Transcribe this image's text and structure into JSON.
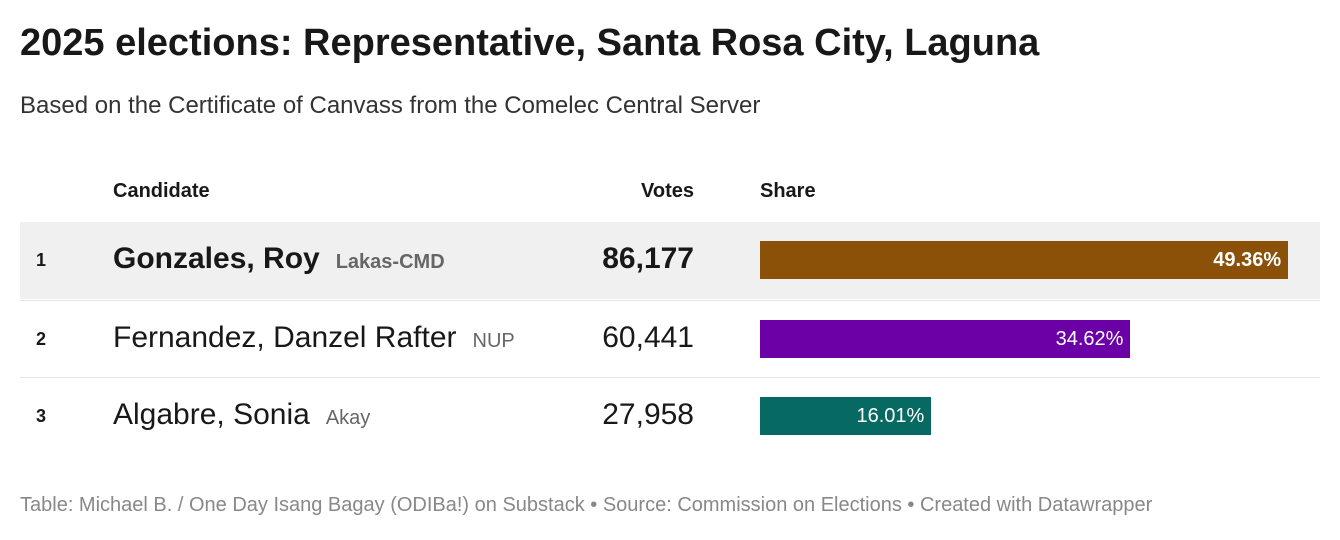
{
  "title": "2025 elections: Representative, Santa Rosa City, Laguna",
  "subtitle": "Based on the Certificate of Canvass from the Comelec Central Server",
  "table": {
    "columns": [
      "Candidate",
      "Votes",
      "Share"
    ],
    "rows": [
      {
        "rank": "1",
        "name": "Gonzales, Roy",
        "party": "Lakas-CMD",
        "votes": "86,177",
        "share": 49.36,
        "share_label": "49.36%",
        "color": "#8b5109"
      },
      {
        "rank": "2",
        "name": "Fernandez, Danzel Rafter",
        "party": "NUP",
        "votes": "60,441",
        "share": 34.62,
        "share_label": "34.62%",
        "color": "#6a00a6"
      },
      {
        "rank": "3",
        "name": "Algabre, Sonia",
        "party": "Akay",
        "votes": "27,958",
        "share": 16.01,
        "share_label": "16.01%",
        "color": "#066a62"
      }
    ]
  },
  "footer": "Table: Michael B. / One Day Isang Bagay (ODIBa!) on Substack • Source: Commission on Elections • Created with Datawrapper"
}
